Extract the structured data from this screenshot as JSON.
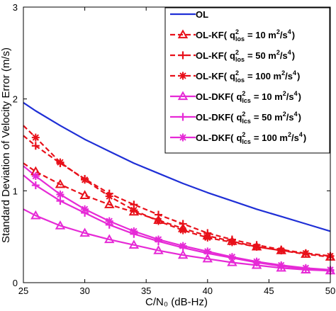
{
  "chart_data": {
    "type": "line",
    "title": "",
    "xlabel": "C/N₀ (dB-Hz)",
    "ylabel": "Standard Deviation of Velocity Error (m/s)",
    "xlim": [
      25,
      50
    ],
    "ylim": [
      0,
      3
    ],
    "xticks": [
      "25",
      "30",
      "35",
      "40",
      "45",
      "50"
    ],
    "yticks": [
      "0",
      "1",
      "2",
      "3"
    ],
    "grid": false,
    "legend_position": "top-right",
    "series": [
      {
        "name": "OL",
        "legend": {
          "prefix": "OL",
          "q": "",
          "sub": "",
          "value": ""
        },
        "color": "#1f2fd6",
        "marker": "none",
        "dash": "solid",
        "x": [
          25,
          26,
          28,
          30,
          32,
          34,
          36,
          38,
          40,
          42,
          44,
          46,
          48,
          50
        ],
        "y": [
          1.96,
          1.87,
          1.71,
          1.56,
          1.43,
          1.3,
          1.19,
          1.08,
          0.98,
          0.89,
          0.8,
          0.72,
          0.64,
          0.56
        ]
      },
      {
        "name": "OL-KF( q²los = 10 m²/s⁴ )",
        "legend": {
          "prefix": "OL-KF(",
          "q": "q",
          "sub": "los",
          "value": "= 10 m",
          "unit": "/s"
        },
        "color": "#e8101a",
        "marker": "triangle",
        "dash": "dashed",
        "x": [
          25,
          26,
          28,
          30,
          32,
          34,
          36,
          38,
          40,
          42,
          44,
          46,
          48,
          50
        ],
        "y": [
          1.3,
          1.21,
          1.07,
          0.95,
          0.85,
          0.77,
          0.68,
          0.59,
          0.51,
          0.45,
          0.39,
          0.35,
          0.31,
          0.28
        ]
      },
      {
        "name": "OL-KF( q²los = 50 m²/s⁴ )",
        "legend": {
          "prefix": "OL-KF(",
          "q": "q",
          "sub": "los",
          "value": "= 50 m",
          "unit": "/s"
        },
        "color": "#e8101a",
        "marker": "plus",
        "dash": "dashed",
        "x": [
          25,
          26,
          28,
          30,
          32,
          34,
          36,
          38,
          40,
          42,
          44,
          46,
          48,
          50
        ],
        "y": [
          1.6,
          1.49,
          1.3,
          1.13,
          0.97,
          0.85,
          0.74,
          0.64,
          0.54,
          0.47,
          0.41,
          0.36,
          0.32,
          0.29
        ]
      },
      {
        "name": "OL-KF( q²los = 100 m²/s⁴ )",
        "legend": {
          "prefix": "OL-KF(",
          "q": "q",
          "sub": "los",
          "value": "= 100 m",
          "unit": "/s"
        },
        "color": "#e8101a",
        "marker": "asterisk",
        "dash": "dashed",
        "x": [
          25,
          26,
          28,
          30,
          32,
          34,
          36,
          38,
          40,
          42,
          44,
          46,
          48,
          50
        ],
        "y": [
          1.71,
          1.58,
          1.31,
          1.12,
          0.94,
          0.79,
          0.67,
          0.57,
          0.49,
          0.44,
          0.39,
          0.35,
          0.32,
          0.29
        ]
      },
      {
        "name": "OL-DKF( q²lcs = 10 m²/s⁴ )",
        "legend": {
          "prefix": "OL-DKF(",
          "q": "q",
          "sub": "lcs",
          "value": "= 10 m",
          "unit": "/s"
        },
        "color": "#e62ad6",
        "marker": "triangle",
        "dash": "solid",
        "x": [
          25,
          26,
          28,
          30,
          32,
          34,
          36,
          38,
          40,
          42,
          44,
          46,
          48,
          50
        ],
        "y": [
          0.8,
          0.73,
          0.62,
          0.54,
          0.47,
          0.41,
          0.35,
          0.3,
          0.26,
          0.22,
          0.19,
          0.16,
          0.14,
          0.13
        ]
      },
      {
        "name": "OL-DKF( q²lcs = 50 m²/s⁴ )",
        "legend": {
          "prefix": "OL-DKF(",
          "q": "q",
          "sub": "lcs",
          "value": "= 50 m",
          "unit": "/s"
        },
        "color": "#e62ad6",
        "marker": "plus",
        "dash": "solid",
        "x": [
          25,
          26,
          28,
          30,
          32,
          34,
          36,
          38,
          40,
          42,
          44,
          46,
          48,
          50
        ],
        "y": [
          1.17,
          1.06,
          0.89,
          0.76,
          0.63,
          0.53,
          0.45,
          0.38,
          0.32,
          0.27,
          0.22,
          0.18,
          0.15,
          0.13
        ]
      },
      {
        "name": "OL-DKF( q²lcs = 100 m²/s⁴ )",
        "legend": {
          "prefix": "OL-DKF(",
          "q": "q",
          "sub": "lcs",
          "value": "= 100 m",
          "unit": "/s"
        },
        "color": "#e62ad6",
        "marker": "asterisk",
        "dash": "solid",
        "x": [
          25,
          26,
          28,
          30,
          32,
          34,
          36,
          38,
          40,
          42,
          44,
          46,
          48,
          50
        ],
        "y": [
          1.27,
          1.16,
          0.96,
          0.8,
          0.67,
          0.56,
          0.47,
          0.4,
          0.34,
          0.28,
          0.23,
          0.19,
          0.16,
          0.14
        ]
      }
    ]
  }
}
